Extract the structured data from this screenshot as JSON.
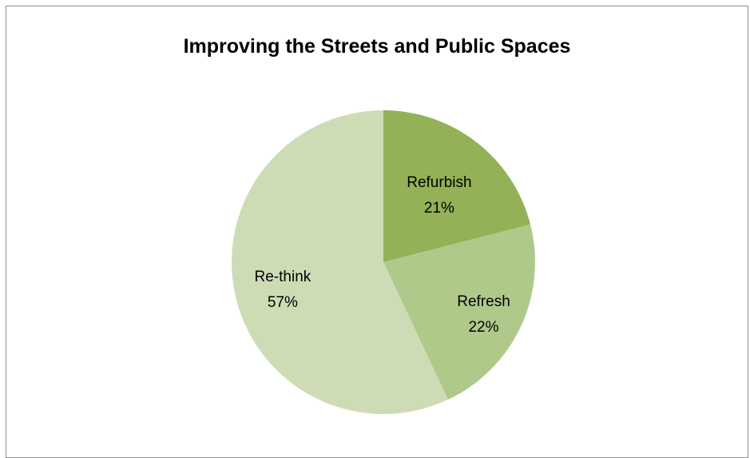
{
  "chart_data": {
    "type": "pie",
    "title": "Improving the Streets and Public Spaces",
    "categories": [
      "Refurbish",
      "Refresh",
      "Re-think"
    ],
    "values": [
      21,
      22,
      57
    ],
    "value_labels": [
      "21%",
      "22%",
      "57%"
    ],
    "colors": [
      "#93b156",
      "#afc98a",
      "#cedcb6"
    ],
    "start_angle_deg": 0,
    "direction": "clockwise",
    "legend": "none"
  }
}
